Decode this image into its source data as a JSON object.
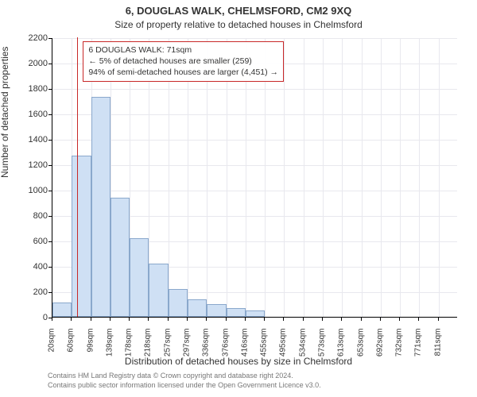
{
  "title": "6, DOUGLAS WALK, CHELMSFORD, CM2 9XQ",
  "subtitle": "Size of property relative to detached houses in Chelmsford",
  "ylabel": "Number of detached properties",
  "xlabel": "Distribution of detached houses by size in Chelmsford",
  "chart": {
    "type": "histogram",
    "ylim": [
      0,
      2200
    ],
    "ytick_step": 200,
    "x_start": 20,
    "x_bin": 39.5,
    "n_bins": 21,
    "xtick_labels": [
      "20sqm",
      "60sqm",
      "99sqm",
      "139sqm",
      "178sqm",
      "218sqm",
      "257sqm",
      "297sqm",
      "336sqm",
      "376sqm",
      "416sqm",
      "455sqm",
      "495sqm",
      "534sqm",
      "573sqm",
      "613sqm",
      "653sqm",
      "692sqm",
      "732sqm",
      "771sqm",
      "811sqm"
    ],
    "bar_values": [
      110,
      1270,
      1730,
      940,
      620,
      420,
      220,
      140,
      100,
      70,
      50,
      0,
      0,
      0,
      0,
      0,
      0,
      0,
      0,
      0,
      0
    ],
    "bar_fill": "#cfe0f4",
    "bar_border": "#8aa8cc",
    "grid_color": "#e8e8ee",
    "axis_color": "#000000",
    "marker_value_sqm": 71,
    "marker_color": "#c82828"
  },
  "annotation": {
    "line1": "6 DOUGLAS WALK: 71sqm",
    "line2": "← 5% of detached houses are smaller (259)",
    "line3": "94% of semi-detached houses are larger (4,451) →",
    "border_color": "#c82828"
  },
  "credit_line1": "Contains HM Land Registry data © Crown copyright and database right 2024.",
  "credit_line2": "Contains public sector information licensed under the Open Government Licence v3.0.",
  "fonts": {
    "title": 13,
    "subtitle": 12,
    "axis_label": 12,
    "tick": 11,
    "xtick": 10,
    "annotation": 10.5,
    "credit": 9
  },
  "colors": {
    "text": "#333333",
    "background": "#ffffff",
    "credit": "#777777"
  }
}
